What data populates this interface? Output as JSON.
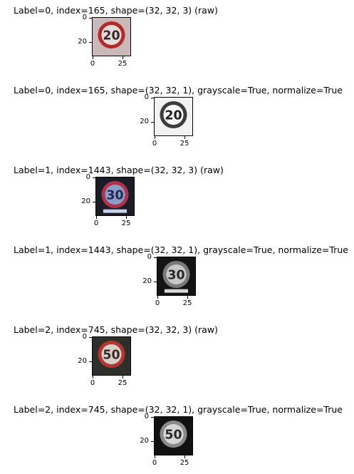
{
  "panels": [
    {
      "title": "Label=0, index=165, shape=(32, 32, 3) (raw)",
      "sign_number": "20",
      "mode": "raw",
      "background": "#c9b9b8",
      "ring": "#b32a2a",
      "face": "#e6dada",
      "digits": "#3a2a2a",
      "y_ticks": [
        "0",
        "20"
      ],
      "x_ticks": [
        "0",
        "25"
      ]
    },
    {
      "title": "Label=0, index=165, shape=(32, 32, 1), grayscale=True, normalize=True",
      "sign_number": "20",
      "mode": "gray",
      "background": "#f2f2f2",
      "ring": "#3c3c3c",
      "face": "#f7f7f7",
      "digits": "#1e1e1e",
      "y_ticks": [
        "0",
        "20"
      ],
      "x_ticks": [
        "0",
        "25"
      ]
    },
    {
      "title": "Label=1, index=1443, shape=(32, 32, 3) (raw)",
      "sign_number": "30",
      "mode": "raw",
      "background": "#1a1d27",
      "ring": "#b0324a",
      "face": "#8c9ec8",
      "digits": "#1e2a52",
      "y_ticks": [
        "0",
        "20"
      ],
      "x_ticks": [
        "0",
        "25"
      ]
    },
    {
      "title": "Label=1, index=1443, shape=(32, 32, 1), grayscale=True, normalize=True",
      "sign_number": "30",
      "mode": "gray",
      "background": "#141414",
      "ring": "#7a7a7a",
      "face": "#c8c8c8",
      "digits": "#2a2a2a",
      "y_ticks": [
        "0",
        "20"
      ],
      "x_ticks": [
        "0",
        "25"
      ]
    },
    {
      "title": "Label=2, index=745, shape=(32, 32, 3) (raw)",
      "sign_number": "50",
      "mode": "raw",
      "background": "#2e2f2a",
      "ring": "#b23634",
      "face": "#d8cfc8",
      "digits": "#3a2a28",
      "y_ticks": [
        "0",
        "20"
      ],
      "x_ticks": [
        "0",
        "25"
      ]
    },
    {
      "title": "Label=2, index=745, shape=(32, 32, 1), grayscale=True, normalize=True",
      "sign_number": "50",
      "mode": "gray",
      "background": "#111111",
      "ring": "#8a8a8a",
      "face": "#d6d6d6",
      "digits": "#2a2a2a",
      "y_ticks": [
        "0",
        "20"
      ],
      "x_ticks": [
        "0",
        "25"
      ]
    }
  ]
}
